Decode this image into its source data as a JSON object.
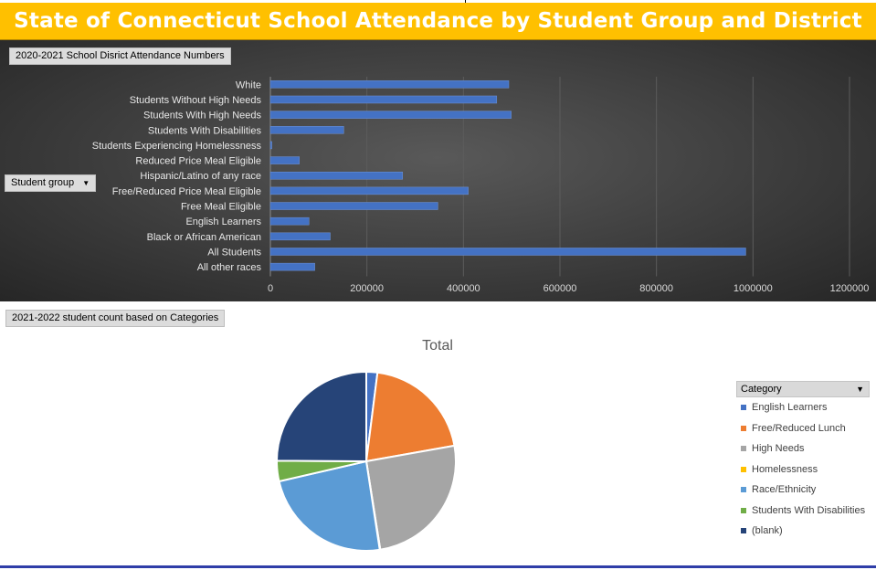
{
  "page_title": "State of Connecticut School Attendance by Student Group and District",
  "colors": {
    "banner_bg": "#ffc000",
    "bar_fill": "#4472c4",
    "panel_bg": "#404040"
  },
  "bar_section": {
    "field_label": "2020-2021 School Disrict Attendance Numbers",
    "row_field_label": "Student group",
    "row_field_icon": "dropdown-arrow-icon"
  },
  "pie_section": {
    "field_label": "2021-2022 student count based on Categories",
    "legend_header": "Category",
    "legend_icon": "dropdown-arrow-icon"
  },
  "chart_data": [
    {
      "type": "bar",
      "orientation": "horizontal",
      "title": "",
      "categories": [
        "White",
        "Students Without High Needs",
        "Students With High Needs",
        "Students With Disabilities",
        "Students Experiencing Homelessness",
        "Reduced Price Meal Eligible",
        "Hispanic/Latino of any race",
        "Free/Reduced Price Meal Eligible",
        "Free Meal Eligible",
        "English Learners",
        "Black or African American",
        "All Students",
        "All other races"
      ],
      "values": [
        494000,
        469000,
        499000,
        152000,
        3000,
        60000,
        274000,
        410000,
        347000,
        80000,
        124000,
        985000,
        92000
      ],
      "xlim": [
        0,
        1200000
      ],
      "xticks": [
        0,
        200000,
        400000,
        600000,
        800000,
        1000000,
        1200000
      ],
      "grid": true,
      "legend": "none"
    },
    {
      "type": "pie",
      "title": "Total",
      "labels": [
        "English Learners",
        "Free/Reduced Lunch",
        "High Needs",
        "Homelessness",
        "Race/Ethnicity",
        "Students With Disabilities",
        "(blank)"
      ],
      "values": [
        2.0,
        20.2,
        25.3,
        0.1,
        23.8,
        3.7,
        24.9
      ],
      "colors": [
        "#4472c4",
        "#ed7d31",
        "#a5a5a5",
        "#ffc000",
        "#5b9bd5",
        "#70ad47",
        "#264478"
      ],
      "legend": "right"
    }
  ]
}
